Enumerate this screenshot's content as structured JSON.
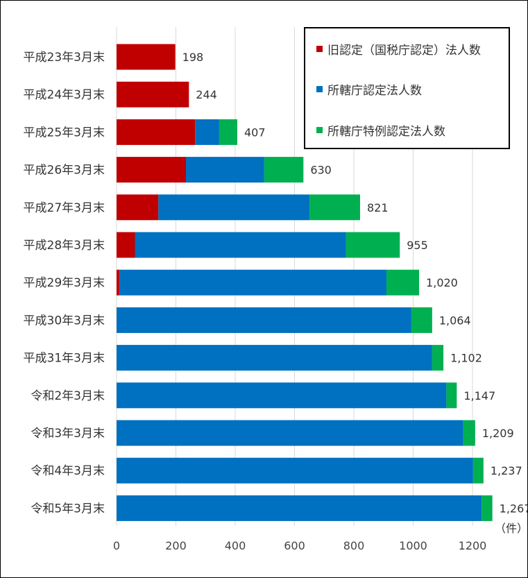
{
  "chart_data": {
    "type": "bar",
    "orientation": "horizontal",
    "stacked": true,
    "categories": [
      "平成23年3月末",
      "平成24年3月末",
      "平成25年3月末",
      "平成26年3月末",
      "平成27年3月末",
      "平成28年3月末",
      "平成29年3月末",
      "平成30年3月末",
      "平成31年3月末",
      "令和2年3月末",
      "令和3年3月末",
      "令和4年3月末",
      "令和5年3月末"
    ],
    "series": [
      {
        "name": "旧認定（国税庁認定）法人数",
        "color": "#c00000",
        "values": [
          198,
          244,
          265,
          234,
          141,
          62,
          10,
          0,
          0,
          0,
          0,
          0,
          0
        ]
      },
      {
        "name": "所轄庁認定法人数",
        "color": "#0070c0",
        "values": [
          0,
          0,
          81,
          264,
          510,
          712,
          900,
          994,
          1064,
          1112,
          1169,
          1202,
          1231
        ]
      },
      {
        "name": "所轄庁特例認定法人数",
        "color": "#00b050",
        "values": [
          0,
          0,
          61,
          132,
          170,
          181,
          110,
          70,
          38,
          35,
          40,
          35,
          36
        ]
      }
    ],
    "totals": [
      "198",
      "244",
      "407",
      "630",
      "821",
      "955",
      "1,020",
      "1,064",
      "1,102",
      "1,147",
      "1,209",
      "1,237",
      "1,267"
    ],
    "x_ticks": [
      "0",
      "200",
      "400",
      "600",
      "800",
      "1000",
      "1200"
    ],
    "xlim": [
      0,
      1300
    ],
    "unit_label": "（件）",
    "grid": true,
    "legend_position": "top-right"
  }
}
